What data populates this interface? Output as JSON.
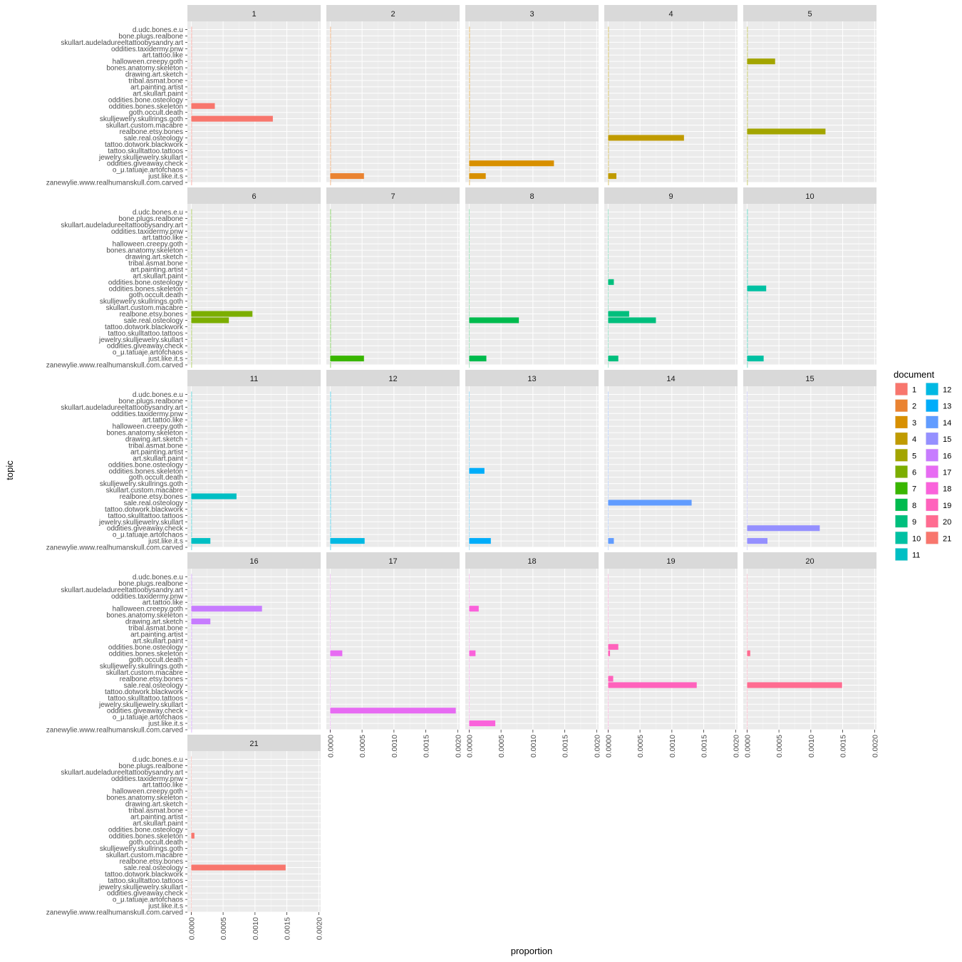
{
  "chart_data": {
    "type": "bar",
    "orientation": "horizontal",
    "facet_variable": "document",
    "xlabel": "proportion",
    "ylabel": "topic",
    "xlim": [
      -6e-05,
      0.00203
    ],
    "x_ticks": [
      "0.0000",
      "0.0005",
      "0.0010",
      "0.0015",
      "0.0020"
    ],
    "x_tick_values": [
      0,
      0.0005,
      0.001,
      0.0015,
      0.002
    ],
    "legend": {
      "title": "document",
      "position": "right"
    },
    "categories": [
      "d.udc.bones.e.u",
      "bone.plugs.realbone",
      "skullart.audeladureeltattoobysandry.art",
      "oddities.taxidermy.pnw",
      "art.tattoo.like",
      "halloween.creepy.goth",
      "bones.anatomy.skeleton",
      "drawing.art.sketch",
      "tribal.asmat.bone",
      "art.painting.artist",
      "art.skullart.paint",
      "oddities.bone.osteology",
      "oddities.bones.skeleton",
      "goth.occult.death",
      "skulljewelry.skullrings.goth",
      "skullart.custom.macabre",
      "realbone.etsy.bones",
      "sale.real.osteology",
      "tattoo.dotwork.blackwork",
      "tattoo.skulltattoo.tattoos",
      "jewelry.skulljewelry.skullart",
      "oddities.giveaway.check",
      "o_μ.tatuaje.artofchaos",
      "just.like.it.s",
      "zanewylie.www.realhumanskull.com.carved"
    ],
    "series": [
      {
        "name": "1",
        "color": "#F8766D",
        "values": [
          1e-05,
          1e-05,
          1e-05,
          1e-05,
          1e-05,
          1e-05,
          1e-05,
          1e-05,
          1e-05,
          1e-05,
          1e-05,
          1e-05,
          0.00037,
          1e-05,
          0.00128,
          1e-05,
          1e-05,
          1e-05,
          1e-05,
          1e-05,
          1e-05,
          1e-05,
          1e-05,
          1e-05,
          1e-05
        ]
      },
      {
        "name": "2",
        "color": "#EA8331",
        "values": [
          1e-05,
          1e-05,
          1e-05,
          1e-05,
          1e-05,
          1e-05,
          1e-05,
          1e-05,
          1e-05,
          1e-05,
          1e-05,
          1e-05,
          1e-05,
          1e-05,
          1e-05,
          1e-05,
          1e-05,
          1e-05,
          1e-05,
          1e-05,
          1e-05,
          1e-05,
          1e-05,
          0.00053,
          1e-05
        ]
      },
      {
        "name": "3",
        "color": "#D89000",
        "values": [
          1e-05,
          1e-05,
          1e-05,
          1e-05,
          1e-05,
          1e-05,
          1e-05,
          1e-05,
          1e-05,
          1e-05,
          1e-05,
          1e-05,
          1e-05,
          1e-05,
          1e-05,
          1e-05,
          1e-05,
          1e-05,
          1e-05,
          1e-05,
          1e-05,
          0.00133,
          1e-05,
          0.00026,
          1e-05
        ]
      },
      {
        "name": "4",
        "color": "#C09B00",
        "values": [
          1e-05,
          1e-05,
          1e-05,
          1e-05,
          1e-05,
          1e-05,
          1e-05,
          1e-05,
          1e-05,
          1e-05,
          1e-05,
          1e-05,
          1e-05,
          1e-05,
          1e-05,
          1e-05,
          1e-05,
          0.00119,
          1e-05,
          1e-05,
          1e-05,
          1e-05,
          1e-05,
          0.00013,
          1e-05
        ]
      },
      {
        "name": "5",
        "color": "#A3A500",
        "values": [
          1e-05,
          1e-05,
          1e-05,
          1e-05,
          1e-05,
          0.00044,
          1e-05,
          1e-05,
          1e-05,
          1e-05,
          1e-05,
          1e-05,
          1e-05,
          1e-05,
          1e-05,
          1e-05,
          0.00123,
          1e-05,
          1e-05,
          1e-05,
          1e-05,
          1e-05,
          1e-05,
          1e-05,
          1e-05
        ]
      },
      {
        "name": "6",
        "color": "#7CAE00",
        "values": [
          1e-05,
          1e-05,
          1e-05,
          1e-05,
          1e-05,
          1e-05,
          1e-05,
          1e-05,
          1e-05,
          1e-05,
          1e-05,
          1e-05,
          1e-05,
          1e-05,
          1e-05,
          1e-05,
          0.00096,
          0.00059,
          1e-05,
          1e-05,
          1e-05,
          1e-05,
          1e-05,
          1e-05,
          1e-05
        ]
      },
      {
        "name": "7",
        "color": "#39B600",
        "values": [
          1e-05,
          1e-05,
          1e-05,
          1e-05,
          1e-05,
          1e-05,
          1e-05,
          1e-05,
          1e-05,
          1e-05,
          1e-05,
          1e-05,
          1e-05,
          1e-05,
          1e-05,
          1e-05,
          1e-05,
          1e-05,
          1e-05,
          1e-05,
          1e-05,
          1e-05,
          1e-05,
          0.00053,
          1e-05
        ]
      },
      {
        "name": "8",
        "color": "#00BB4E",
        "values": [
          0,
          0,
          0,
          0,
          0,
          0,
          0,
          0,
          0,
          0,
          0,
          0,
          0,
          0,
          0,
          0,
          0,
          0.00078,
          0,
          0,
          0,
          0,
          0,
          0.00027,
          0
        ]
      },
      {
        "name": "9",
        "color": "#00BF7D",
        "values": [
          0,
          0,
          0,
          0,
          0,
          0,
          0,
          0,
          0,
          0,
          0,
          9e-05,
          0,
          0,
          0,
          0,
          0.00033,
          0.00075,
          0,
          0,
          0,
          0,
          0,
          0.00016,
          0
        ]
      },
      {
        "name": "10",
        "color": "#00C1A3",
        "values": [
          1e-05,
          1e-05,
          1e-05,
          1e-05,
          1e-05,
          1e-05,
          1e-05,
          1e-05,
          1e-05,
          1e-05,
          1e-05,
          1e-05,
          0.0003,
          1e-05,
          1e-05,
          1e-05,
          1e-05,
          1e-05,
          1e-05,
          1e-05,
          1e-05,
          1e-05,
          1e-05,
          0.00026,
          1e-05
        ]
      },
      {
        "name": "11",
        "color": "#00BFC4",
        "values": [
          1e-05,
          1e-05,
          1e-05,
          1e-05,
          1e-05,
          1e-05,
          1e-05,
          1e-05,
          1e-05,
          1e-05,
          1e-05,
          1e-05,
          1e-05,
          1e-05,
          1e-05,
          1e-05,
          0.00071,
          1e-05,
          1e-05,
          1e-05,
          1e-05,
          1e-05,
          1e-05,
          0.0003,
          1e-05
        ]
      },
      {
        "name": "12",
        "color": "#00B9E3",
        "values": [
          1e-05,
          1e-05,
          1e-05,
          1e-05,
          1e-05,
          1e-05,
          1e-05,
          1e-05,
          1e-05,
          1e-05,
          1e-05,
          1e-05,
          1e-05,
          1e-05,
          1e-05,
          1e-05,
          1e-05,
          1e-05,
          1e-05,
          1e-05,
          1e-05,
          1e-05,
          1e-05,
          0.00054,
          1e-05
        ]
      },
      {
        "name": "13",
        "color": "#00ADFA",
        "values": [
          0,
          0,
          0,
          0,
          0,
          0,
          0,
          0,
          0,
          0,
          0,
          0,
          0.00024,
          0,
          0,
          0,
          0,
          0,
          0,
          0,
          0,
          0,
          0,
          0.00034,
          0
        ]
      },
      {
        "name": "14",
        "color": "#619CFF",
        "values": [
          0,
          0,
          0,
          0,
          0,
          0,
          0,
          0,
          0,
          0,
          0,
          0,
          0,
          0,
          0,
          0,
          0,
          0.00131,
          0,
          0,
          0,
          0,
          0,
          9e-05,
          0
        ]
      },
      {
        "name": "15",
        "color": "#9590FF",
        "values": [
          0,
          0,
          0,
          0,
          0,
          0,
          0,
          0,
          0,
          0,
          0,
          0,
          0,
          0,
          0,
          0,
          0,
          0,
          0,
          0,
          0,
          0.00114,
          0,
          0.00032,
          0
        ]
      },
      {
        "name": "16",
        "color": "#C77CFF",
        "values": [
          1e-05,
          1e-05,
          1e-05,
          1e-05,
          1e-05,
          0.00111,
          1e-05,
          0.0003,
          1e-05,
          1e-05,
          1e-05,
          1e-05,
          1e-05,
          1e-05,
          1e-05,
          1e-05,
          1e-05,
          1e-05,
          1e-05,
          1e-05,
          1e-05,
          1e-05,
          1e-05,
          1e-05,
          1e-05
        ]
      },
      {
        "name": "17",
        "color": "#E76BF3",
        "values": [
          0,
          0,
          0,
          0,
          0,
          0,
          0,
          0,
          0,
          0,
          0,
          0,
          0.00019,
          0,
          0,
          0,
          0,
          0,
          0,
          0,
          0,
          0.00197,
          0,
          0,
          0
        ]
      },
      {
        "name": "18",
        "color": "#FA62DB",
        "values": [
          0,
          0,
          0,
          0,
          0,
          0.00015,
          0,
          0,
          0,
          0,
          0,
          0,
          0.0001,
          0,
          0,
          0,
          0,
          0,
          0,
          0,
          0,
          0,
          0,
          0.00041,
          0
        ]
      },
      {
        "name": "19",
        "color": "#FF62BC",
        "values": [
          0,
          0,
          0,
          0,
          0,
          0,
          0,
          0,
          0,
          0,
          0,
          0.00016,
          3e-05,
          0,
          0,
          0,
          8e-05,
          0.00139,
          0,
          0,
          0,
          0,
          0,
          0,
          0
        ]
      },
      {
        "name": "20",
        "color": "#FF6C91",
        "values": [
          0,
          0,
          0,
          0,
          0,
          0,
          0,
          0,
          0,
          0,
          0,
          0,
          5e-05,
          0,
          0,
          0,
          0,
          0.00149,
          0,
          0,
          0,
          0,
          0,
          0,
          0
        ]
      },
      {
        "name": "21",
        "color": "#F8766D",
        "values": [
          0,
          0,
          0,
          0,
          0,
          0,
          0,
          0,
          0,
          0,
          0,
          0,
          5e-05,
          0,
          0,
          0,
          0,
          0.00148,
          0,
          0,
          0,
          0,
          0,
          0,
          0
        ]
      }
    ]
  }
}
